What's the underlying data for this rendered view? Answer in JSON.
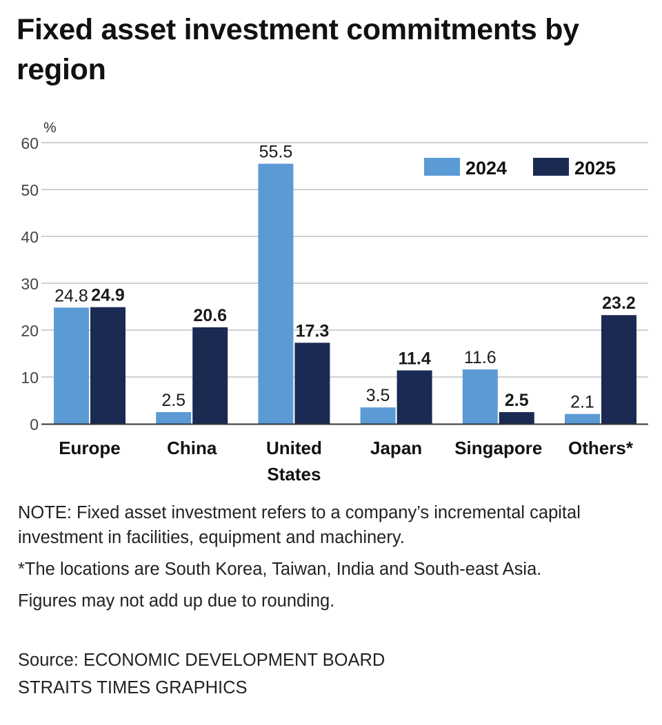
{
  "title": "Fixed asset investment commitments by region",
  "notes": {
    "note": "NOTE: Fixed asset investment refers to a company’s incremental capital investment in facilities, equipment and machinery.",
    "footnote": "*The locations are South Korea, Taiwan, India and South-east Asia.",
    "rounding": "Figures may not add up due to rounding."
  },
  "source": {
    "line1": "Source: ECONOMIC DEVELOPMENT BOARD",
    "line2": "STRAITS TIMES GRAPHICS"
  },
  "colors": {
    "series_2024": "#5b9bd5",
    "series_2025": "#1b2a52",
    "grid": "#b5b5b5",
    "axis": "#333333"
  },
  "chart_data": {
    "type": "bar",
    "title": "Fixed asset investment commitments by region",
    "ylabel": "%",
    "xlabel": "",
    "ylim": [
      0,
      60
    ],
    "yticks": [
      0,
      10,
      20,
      30,
      40,
      50,
      60
    ],
    "grid": true,
    "legend_position": "top-right",
    "categories": [
      "Europe",
      "China",
      "United States",
      "Japan",
      "Singapore",
      "Others*"
    ],
    "series": [
      {
        "name": "2024",
        "values": [
          24.8,
          2.5,
          55.5,
          3.5,
          11.6,
          2.1
        ],
        "labels": [
          "24.8",
          "2.5",
          "55.5",
          "3.5",
          "11.6",
          "2.1"
        ]
      },
      {
        "name": "2025",
        "values": [
          24.9,
          20.6,
          17.3,
          11.4,
          2.5,
          23.2
        ],
        "labels": [
          "24.9",
          "20.6",
          "17.3",
          "11.4",
          "2.5",
          "23.2"
        ]
      }
    ]
  }
}
